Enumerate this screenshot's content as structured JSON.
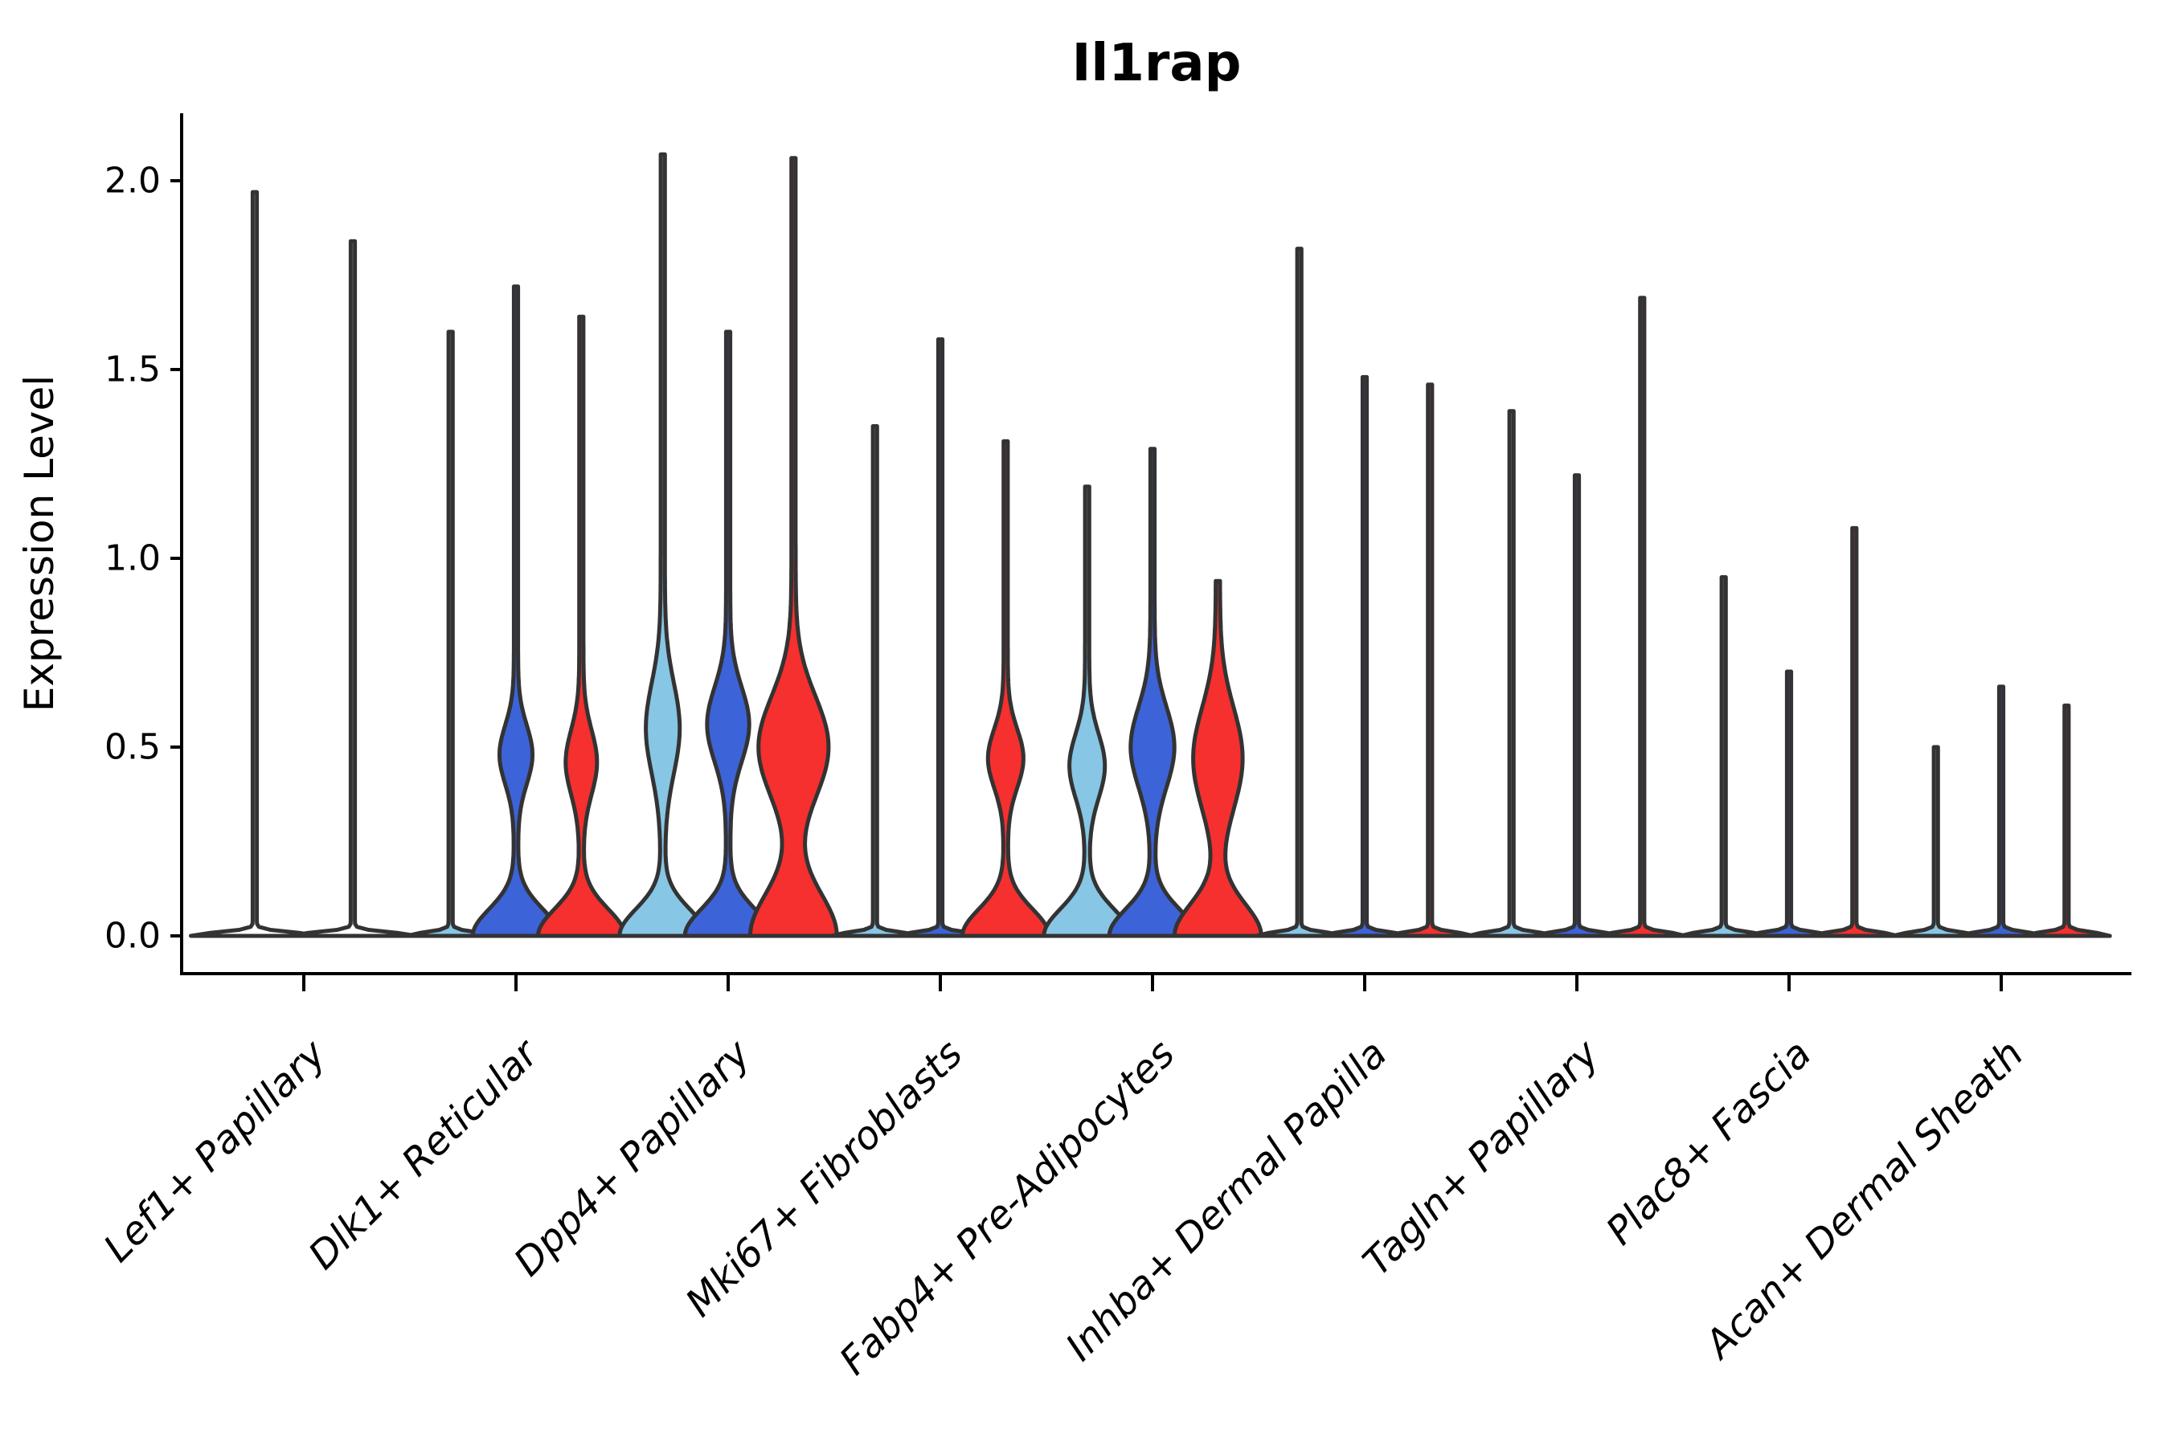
{
  "title": "Il1rap",
  "y_axis": {
    "label": "Expression Level",
    "tick_labels": [
      "0.0",
      "0.5",
      "1.0",
      "1.5",
      "2.0"
    ],
    "tick_values": [
      0.0,
      0.5,
      1.0,
      1.5,
      2.0
    ]
  },
  "x_axis": {
    "categories": [
      "Lef1+ Papillary",
      "Dlk1+ Reticular",
      "Dpp4+ Papillary",
      "Mki67+ Fibroblasts",
      "Fabp4+ Pre-Adipocytes",
      "Inhba+ Dermal Papilla",
      "Tagln+ Papillary",
      "Plac8+ Fascia",
      "Acan+ Dermal Sheath"
    ]
  },
  "palette": {
    "light_blue": "#87C6E5",
    "blue": "#3C63D8",
    "red": "#F5302E",
    "outline": "#333333",
    "axis": "#000000"
  },
  "chart_data": {
    "type": "violin",
    "title": "Il1rap",
    "xlabel": "",
    "ylabel": "Expression Level",
    "ylim": [
      -0.1,
      2.18
    ],
    "grid": false,
    "legend": "none",
    "categories": [
      "Lef1+ Papillary",
      "Dlk1+ Reticular",
      "Dpp4+ Papillary",
      "Mki67+ Fibroblasts",
      "Fabp4+ Pre-Adipocytes",
      "Inhba+ Dermal Papilla",
      "Tagln+ Papillary",
      "Plac8+ Fascia",
      "Acan+ Dermal Sheath"
    ],
    "groups": [
      {
        "category": "Lef1+ Papillary",
        "violins": [
          {
            "color": "#ffffff",
            "max": 1.97,
            "body": null
          },
          {
            "color": "#ffffff",
            "max": 1.84,
            "body": null
          }
        ]
      },
      {
        "category": "Dlk1+ Reticular",
        "violins": [
          {
            "color": "#87C6E5",
            "max": 1.6,
            "body": null
          },
          {
            "color": "#3C63D8",
            "max": 1.72,
            "body": {
              "center": 0.48,
              "sigma": 0.11,
              "amp": 0.35
            }
          },
          {
            "color": "#F5302E",
            "max": 1.64,
            "body": {
              "center": 0.46,
              "sigma": 0.12,
              "amp": 0.33
            }
          }
        ]
      },
      {
        "category": "Dpp4+ Papillary",
        "violins": [
          {
            "color": "#87C6E5",
            "max": 2.07,
            "body": {
              "center": 0.55,
              "sigma": 0.17,
              "amp": 0.36
            }
          },
          {
            "color": "#3C63D8",
            "max": 1.6,
            "body": {
              "center": 0.56,
              "sigma": 0.14,
              "amp": 0.46
            }
          },
          {
            "color": "#F5302E",
            "max": 2.06,
            "body": {
              "center": 0.5,
              "sigma": 0.19,
              "amp": 0.8,
              "base_sigma": 0.16
            }
          }
        ]
      },
      {
        "category": "Mki67+ Fibroblasts",
        "violins": [
          {
            "color": "#87C6E5",
            "max": 1.35,
            "body": null
          },
          {
            "color": "#3C63D8",
            "max": 1.58,
            "body": null
          },
          {
            "color": "#F5302E",
            "max": 1.31,
            "body": {
              "center": 0.47,
              "sigma": 0.11,
              "amp": 0.38
            }
          }
        ]
      },
      {
        "category": "Fabp4+ Pre-Adipocytes",
        "violins": [
          {
            "color": "#87C6E5",
            "max": 1.19,
            "body": {
              "center": 0.45,
              "sigma": 0.12,
              "amp": 0.38
            }
          },
          {
            "color": "#3C63D8",
            "max": 1.29,
            "body": {
              "center": 0.5,
              "sigma": 0.15,
              "amp": 0.48
            }
          },
          {
            "color": "#F5302E",
            "max": 0.94,
            "body": {
              "center": 0.47,
              "sigma": 0.19,
              "amp": 0.55,
              "base_sigma": 0.12
            }
          }
        ]
      },
      {
        "category": "Inhba+ Dermal Papilla",
        "violins": [
          {
            "color": "#87C6E5",
            "max": 1.82,
            "body": null
          },
          {
            "color": "#3C63D8",
            "max": 1.48,
            "body": null
          },
          {
            "color": "#F5302E",
            "max": 1.46,
            "body": null
          }
        ]
      },
      {
        "category": "Tagln+ Papillary",
        "violins": [
          {
            "color": "#87C6E5",
            "max": 1.39,
            "body": null
          },
          {
            "color": "#3C63D8",
            "max": 1.22,
            "body": null
          },
          {
            "color": "#F5302E",
            "max": 1.69,
            "body": null
          }
        ]
      },
      {
        "category": "Plac8+ Fascia",
        "violins": [
          {
            "color": "#87C6E5",
            "max": 0.95,
            "body": null
          },
          {
            "color": "#3C63D8",
            "max": 0.7,
            "body": null
          },
          {
            "color": "#F5302E",
            "max": 1.08,
            "body": null
          }
        ]
      },
      {
        "category": "Acan+ Dermal Sheath",
        "violins": [
          {
            "color": "#87C6E5",
            "max": 0.5,
            "body": null
          },
          {
            "color": "#3C63D8",
            "max": 0.66,
            "body": null
          },
          {
            "color": "#F5302E",
            "max": 0.61,
            "body": null
          }
        ]
      }
    ]
  }
}
